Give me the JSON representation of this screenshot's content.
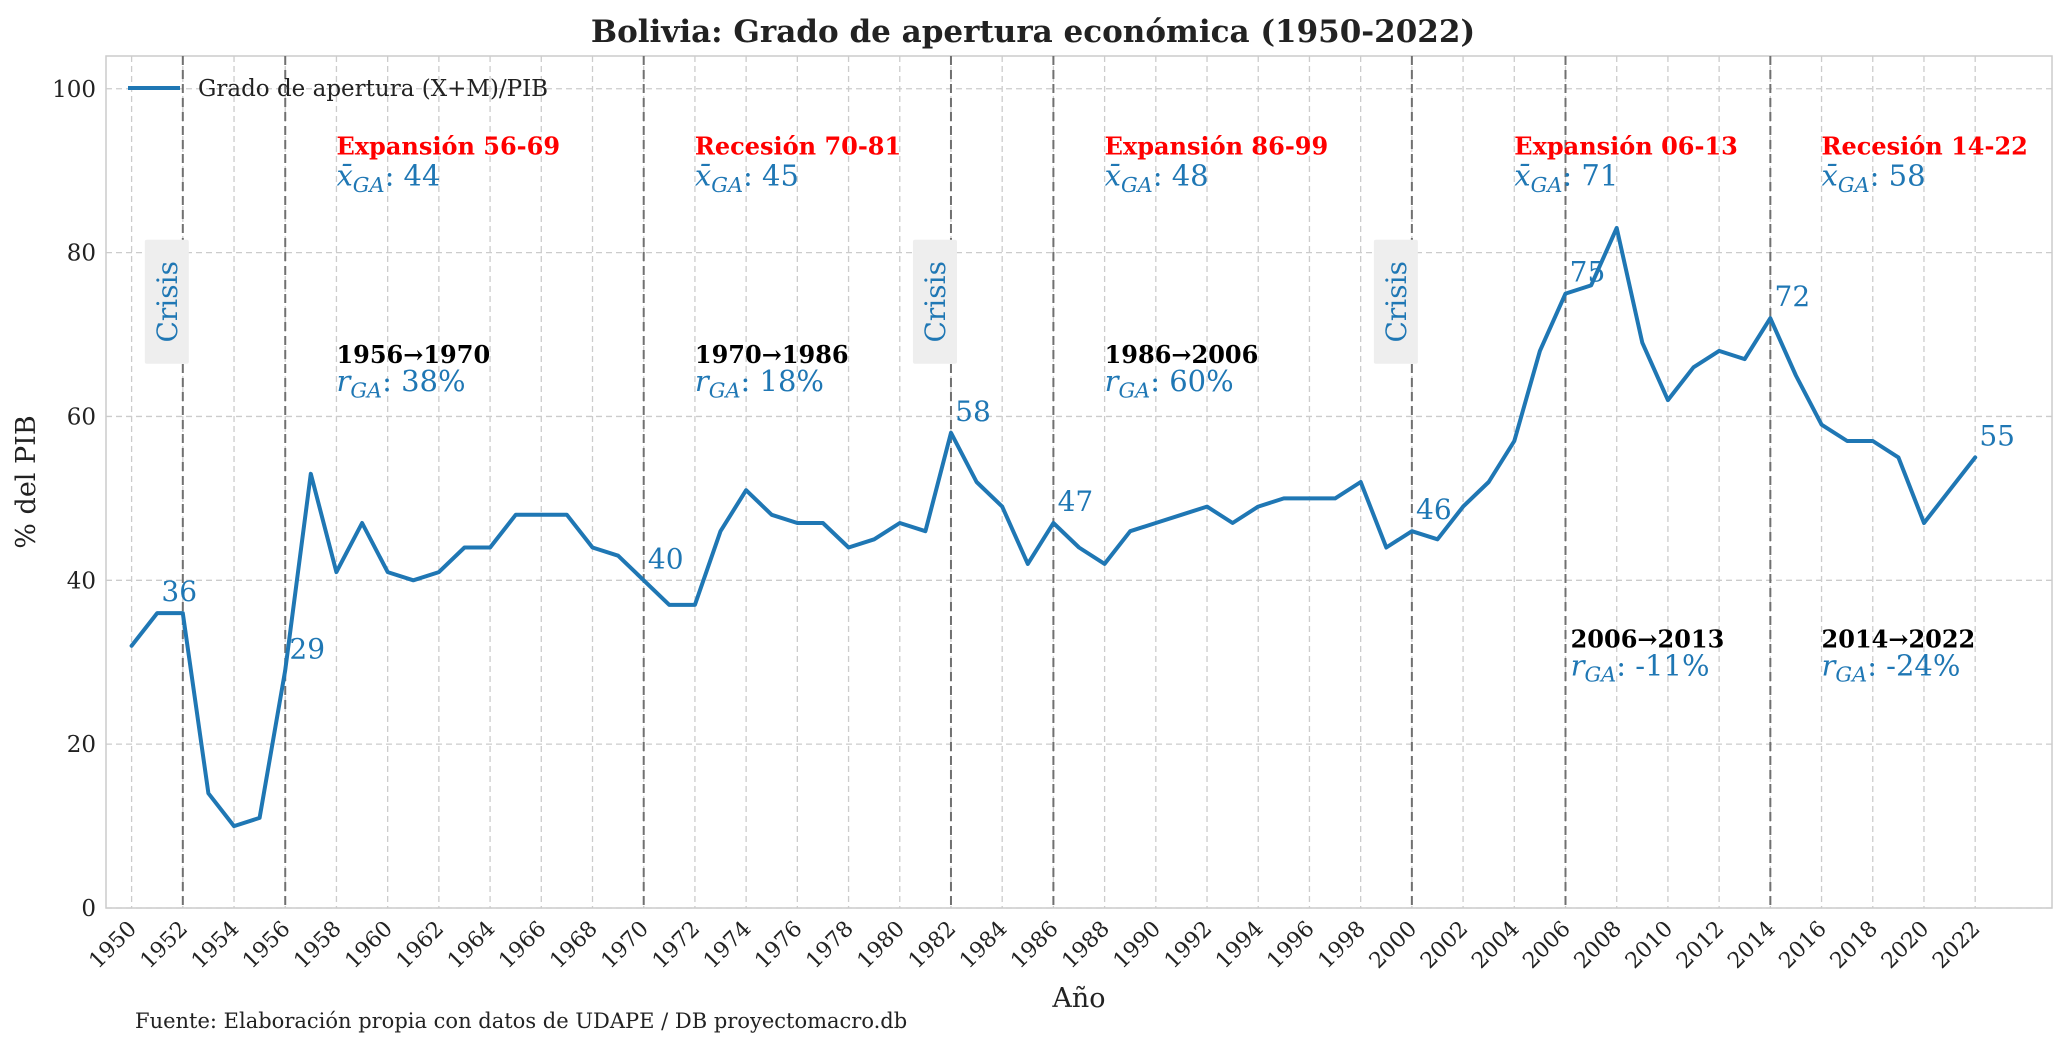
{
  "chart_data": {
    "type": "line",
    "title": "Bolivia: Grado de apertura económica (1950-2022)",
    "xlabel": "Año",
    "ylabel": "% del PIB",
    "xlim": [
      1949,
      2025
    ],
    "ylim": [
      0,
      104
    ],
    "x_ticks": [
      1950,
      1952,
      1954,
      1956,
      1958,
      1960,
      1962,
      1964,
      1966,
      1968,
      1970,
      1972,
      1974,
      1976,
      1978,
      1980,
      1982,
      1984,
      1986,
      1988,
      1990,
      1992,
      1994,
      1996,
      1998,
      2000,
      2002,
      2004,
      2006,
      2008,
      2010,
      2012,
      2014,
      2016,
      2018,
      2020,
      2022
    ],
    "y_ticks": [
      0,
      20,
      40,
      60,
      80,
      100
    ],
    "grid": true,
    "legend_position": "top-left",
    "series": [
      {
        "name": "Grado de apertura (X+M)/PIB",
        "color": "#1f77b4",
        "x": [
          1950,
          1951,
          1952,
          1953,
          1954,
          1955,
          1956,
          1957,
          1958,
          1959,
          1960,
          1961,
          1962,
          1963,
          1964,
          1965,
          1966,
          1967,
          1968,
          1969,
          1970,
          1971,
          1972,
          1973,
          1974,
          1975,
          1976,
          1977,
          1978,
          1979,
          1980,
          1981,
          1982,
          1983,
          1984,
          1985,
          1986,
          1987,
          1988,
          1989,
          1990,
          1991,
          1992,
          1993,
          1994,
          1995,
          1996,
          1997,
          1998,
          1999,
          2000,
          2001,
          2002,
          2003,
          2004,
          2005,
          2006,
          2007,
          2008,
          2009,
          2010,
          2011,
          2012,
          2013,
          2014,
          2015,
          2016,
          2017,
          2018,
          2019,
          2020,
          2021,
          2022
        ],
        "values": [
          32,
          36,
          36,
          14,
          10,
          11,
          29,
          53,
          41,
          47,
          41,
          40,
          41,
          44,
          44,
          48,
          48,
          48,
          44,
          43,
          40,
          37,
          37,
          46,
          51,
          48,
          47,
          47,
          44,
          45,
          47,
          46,
          58,
          52,
          49,
          42,
          47,
          44,
          42,
          46,
          47,
          48,
          49,
          47,
          49,
          50,
          50,
          50,
          52,
          44,
          46,
          45,
          49,
          52,
          57,
          68,
          75,
          76,
          83,
          69,
          62,
          66,
          68,
          67,
          72,
          65,
          59,
          57,
          57,
          55,
          47,
          51,
          55
        ]
      }
    ],
    "vlines": [
      1952,
      1956,
      1970,
      1982,
      1986,
      2000,
      2006,
      2014
    ],
    "point_labels": [
      {
        "x": 1951,
        "y": 36,
        "text": "36"
      },
      {
        "x": 1956,
        "y": 29,
        "text": "29"
      },
      {
        "x": 1970,
        "y": 40,
        "text": "40"
      },
      {
        "x": 1982,
        "y": 58,
        "text": "58"
      },
      {
        "x": 1986,
        "y": 47,
        "text": "47"
      },
      {
        "x": 2000,
        "y": 46,
        "text": "46"
      },
      {
        "x": 2006,
        "y": 75,
        "text": "75"
      },
      {
        "x": 2014,
        "y": 72,
        "text": "72"
      },
      {
        "x": 2022,
        "y": 55,
        "text": "55"
      }
    ],
    "crisis_labels": [
      {
        "x": 1952,
        "text": "Crisis"
      },
      {
        "x": 1982,
        "text": "Crisis"
      },
      {
        "x": 2000,
        "text": "Crisis"
      }
    ],
    "period_labels": [
      {
        "x": 1958,
        "title": "Expansión 56-69",
        "mean_label": "x̄",
        "mean_sub": "GA",
        "mean_value": ": 44"
      },
      {
        "x": 1972,
        "title": "Recesión 70-81",
        "mean_label": "x̄",
        "mean_sub": "GA",
        "mean_value": ": 45"
      },
      {
        "x": 1988,
        "title": "Expansión 86-99",
        "mean_label": "x̄",
        "mean_sub": "GA",
        "mean_value": ": 48"
      },
      {
        "x": 2004,
        "title": "Expansión 06-13",
        "mean_label": "x̄",
        "mean_sub": "GA",
        "mean_value": ": 71"
      },
      {
        "x": 2016,
        "title": "Recesión 14-22",
        "mean_label": "x̄",
        "mean_sub": "GA",
        "mean_value": ": 58"
      }
    ],
    "growth_labels": [
      {
        "x": 1958,
        "y": 66.5,
        "span": "1956→1970",
        "rate_label": "r",
        "rate_sub": "GA",
        "rate_value": ": 38%"
      },
      {
        "x": 1972,
        "y": 66.5,
        "span": "1970→1986",
        "rate_label": "r",
        "rate_sub": "GA",
        "rate_value": ": 18%"
      },
      {
        "x": 1988,
        "y": 66.5,
        "span": "1986→2006",
        "rate_label": "r",
        "rate_sub": "GA",
        "rate_value": ": 60%"
      },
      {
        "x": 2006.2,
        "y": 31.8,
        "span": "2006→2013",
        "rate_label": "r",
        "rate_sub": "GA",
        "rate_value": ": -11%"
      },
      {
        "x": 2016,
        "y": 31.8,
        "span": "2014→2022",
        "rate_label": "r",
        "rate_sub": "GA",
        "rate_value": ": -24%"
      }
    ],
    "source": "Fuente: Elaboración propia con datos de UDAPE / DB proyectomacro.db",
    "colors": {
      "line": "#1f77b4",
      "period_title": "#ff0000",
      "vline": "#707070",
      "grid": "#cccccc"
    }
  }
}
